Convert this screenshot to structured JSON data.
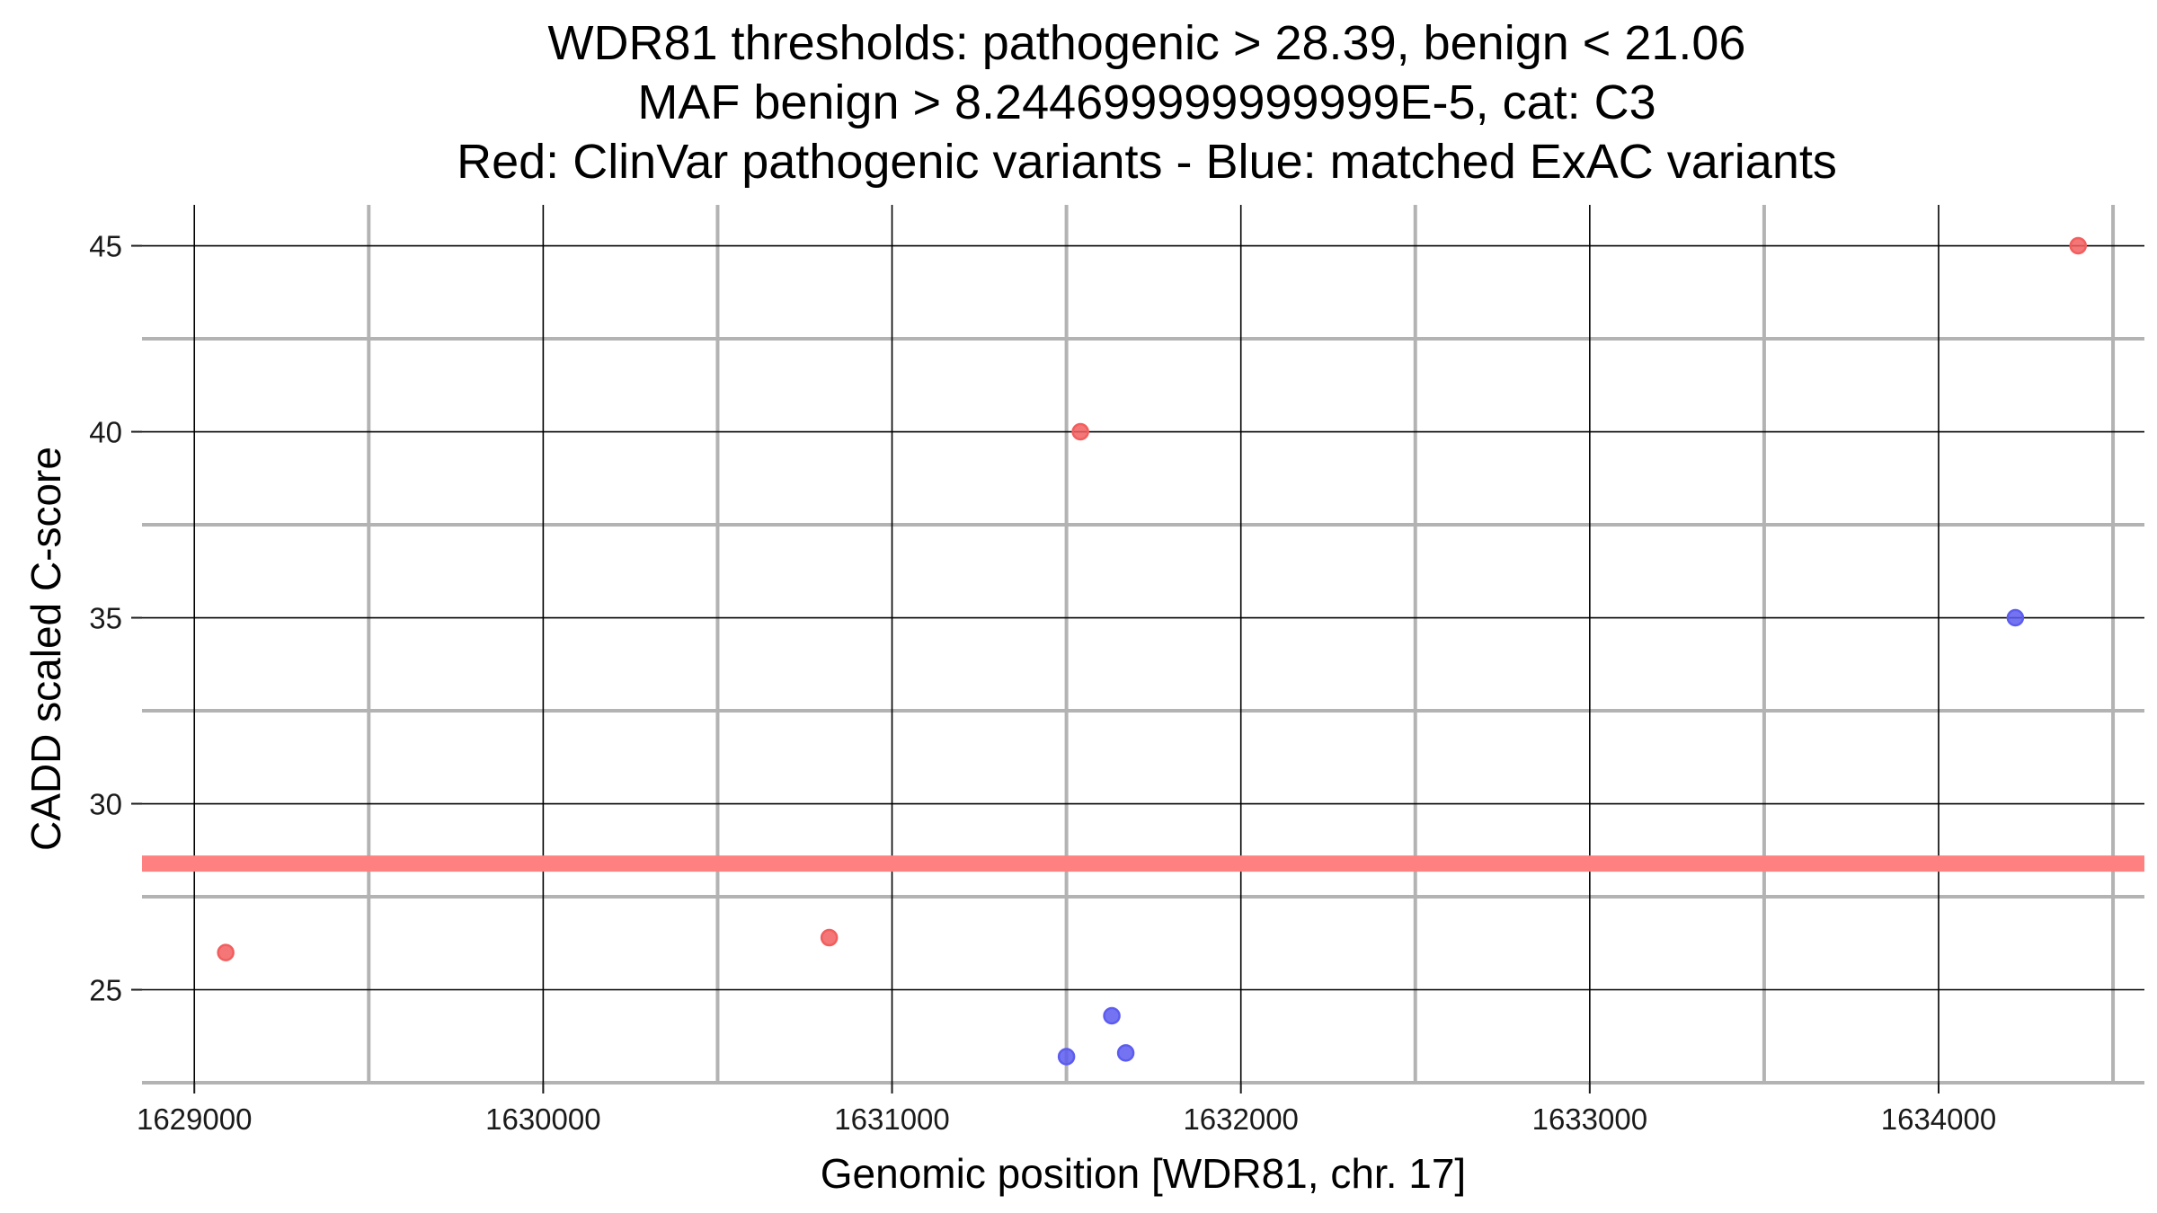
{
  "chart_data": {
    "type": "scatter",
    "title": [
      "WDR81 thresholds: pathogenic > 28.39, benign < 21.06",
      "MAF benign > 8.244699999999999E-5, cat: C3",
      "Red: ClinVar pathogenic variants - Blue: matched ExAC variants"
    ],
    "xlabel": "Genomic position [WDR81, chr. 17]",
    "ylabel": "CADD scaled C-score",
    "xlim": [
      1628850,
      1634590
    ],
    "ylim": [
      22.5,
      46.1
    ],
    "x_major_ticks": [
      1629000,
      1630000,
      1631000,
      1632000,
      1633000,
      1634000
    ],
    "x_tick_labels": [
      "1629000",
      "1630000",
      "1631000",
      "1632000",
      "1633000",
      "1634000"
    ],
    "x_minor_ticks": [
      1629500,
      1630500,
      1631500,
      1632500,
      1633500,
      1634500
    ],
    "y_major_ticks": [
      25,
      30,
      35,
      40,
      45
    ],
    "y_tick_labels": [
      "25",
      "30",
      "35",
      "40",
      "45"
    ],
    "y_minor_ticks": [
      22.5,
      27.5,
      32.5,
      37.5,
      42.5
    ],
    "grid": true,
    "threshold_line": {
      "y": 28.39,
      "color": "#ff8080"
    },
    "series": [
      {
        "color": "#f25e5e",
        "points": [
          {
            "x": 1629090,
            "y": 26.0
          },
          {
            "x": 1630820,
            "y": 26.4
          },
          {
            "x": 1631540,
            "y": 40.0
          },
          {
            "x": 1634400,
            "y": 45.0
          }
        ]
      },
      {
        "color": "#5c5cf0",
        "points": [
          {
            "x": 1631500,
            "y": 23.2
          },
          {
            "x": 1631630,
            "y": 24.3
          },
          {
            "x": 1631670,
            "y": 23.3
          },
          {
            "x": 1634220,
            "y": 35.0
          }
        ]
      }
    ]
  }
}
